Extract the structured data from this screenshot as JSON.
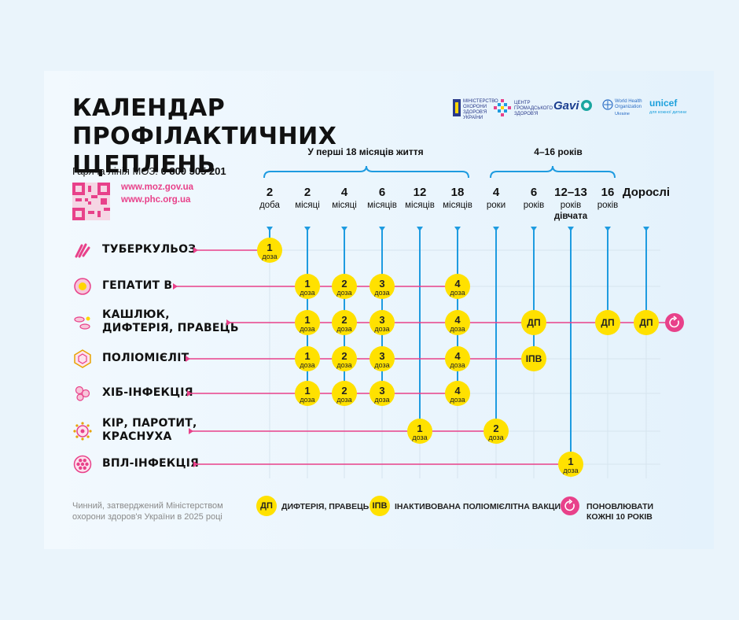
{
  "title": {
    "line1": "КАЛЕНДАР ПРОФІЛАКТИЧНИХ",
    "line2": "ЩЕПЛЕНЬ"
  },
  "hotline": {
    "label": "Гаряча лінія МОЗ:",
    "number": "0 800 505 201"
  },
  "urls": [
    "www.moz.gov.ua",
    "www.phc.org.ua"
  ],
  "logos": {
    "moz": "МІНІСТЕРСТВО ОХОРОНИ ЗДОРОВ'Я УКРАЇНИ",
    "phc": "ЦЕНТР ГРОМАДСЬКОГО ЗДОРОВ'Я",
    "gavi": "Gavi",
    "who": "World Health Organization",
    "who_sub": "Ukraine",
    "unicef": "unicef",
    "unicef_sub": "для кожної дитини"
  },
  "groups": [
    {
      "label": "У перші 18 місяців життя"
    },
    {
      "label": "4–16 років"
    }
  ],
  "ages": [
    {
      "n": "2",
      "u": "доба"
    },
    {
      "n": "2",
      "u": "місяці"
    },
    {
      "n": "4",
      "u": "місяці"
    },
    {
      "n": "6",
      "u": "місяців"
    },
    {
      "n": "12",
      "u": "місяців"
    },
    {
      "n": "18",
      "u": "місяців"
    },
    {
      "n": "4",
      "u": "роки"
    },
    {
      "n": "6",
      "u": "років"
    },
    {
      "n": "12–13",
      "u": "років",
      "u2": "дівчата"
    },
    {
      "n": "16",
      "u": "років"
    },
    {
      "n": "Дорослі",
      "u": ""
    }
  ],
  "dose_word": "доза",
  "diseases": [
    {
      "lines": [
        "ТУБЕРКУЛЬОЗ"
      ],
      "icon": "tuberculosis-icon",
      "cells": [
        {
          "col": 0,
          "n": "1"
        }
      ]
    },
    {
      "lines": [
        "ГЕПАТИТ В"
      ],
      "icon": "hepatitis-icon",
      "cells": [
        {
          "col": 1,
          "n": "1"
        },
        {
          "col": 2,
          "n": "2"
        },
        {
          "col": 3,
          "n": "3"
        },
        {
          "col": 5,
          "n": "4"
        }
      ]
    },
    {
      "lines": [
        "КАШЛЮК,",
        "ДИФТЕРІЯ, ПРАВЕЦЬ"
      ],
      "icon": "pertussis-icon",
      "cells": [
        {
          "col": 1,
          "n": "1"
        },
        {
          "col": 2,
          "n": "2"
        },
        {
          "col": 3,
          "n": "3"
        },
        {
          "col": 5,
          "n": "4"
        },
        {
          "col": 7,
          "t": "ДП"
        },
        {
          "col": 9,
          "t": "ДП"
        },
        {
          "col": 10,
          "t": "ДП"
        }
      ],
      "repeat": true
    },
    {
      "lines": [
        "ПОЛІОМІЄЛІТ"
      ],
      "icon": "polio-icon",
      "cells": [
        {
          "col": 1,
          "n": "1"
        },
        {
          "col": 2,
          "n": "2"
        },
        {
          "col": 3,
          "n": "3"
        },
        {
          "col": 5,
          "n": "4"
        },
        {
          "col": 7,
          "t": "ІПВ"
        }
      ]
    },
    {
      "lines": [
        "ХІБ-ІНФЕКЦІЯ"
      ],
      "icon": "hib-icon",
      "cells": [
        {
          "col": 1,
          "n": "1"
        },
        {
          "col": 2,
          "n": "2"
        },
        {
          "col": 3,
          "n": "3"
        },
        {
          "col": 5,
          "n": "4"
        }
      ]
    },
    {
      "lines": [
        "КІР, ПАРОТИТ,",
        "КРАСНУХА"
      ],
      "icon": "measles-icon",
      "cells": [
        {
          "col": 4,
          "n": "1"
        },
        {
          "col": 6,
          "n": "2"
        }
      ]
    },
    {
      "lines": [
        "ВПЛ-ІНФЕКЦІЯ"
      ],
      "icon": "hpv-icon",
      "cells": [
        {
          "col": 8,
          "n": "1"
        }
      ]
    }
  ],
  "note": "Чинний, затверджений Міністерством охорони здоров'я України в 2025 році",
  "legend": [
    {
      "badge": "ДП",
      "text": "ДИФТЕРІЯ, ПРАВЕЦЬ"
    },
    {
      "badge": "ІПВ",
      "text": "ІНАКТИВОВАНА ПОЛІОМІЄЛІТНА ВАКЦИНА"
    },
    {
      "badge": "",
      "text": "ПОНОВЛЮВАТИ КОЖНІ 10 РОКІВ",
      "icon": "repeat-icon"
    }
  ],
  "colors": {
    "yellow": "#ffe100",
    "pink": "#e8418a",
    "blue": "#1e9be0",
    "grid": "#d6e4ee"
  }
}
